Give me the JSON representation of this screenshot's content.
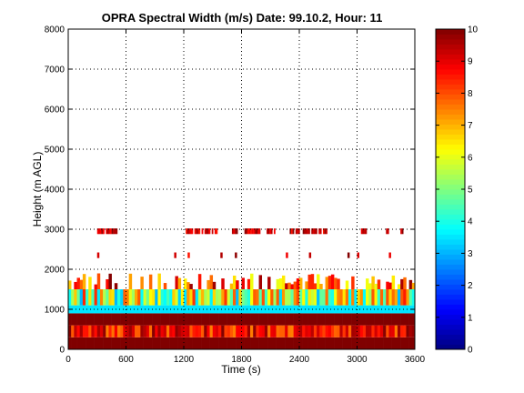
{
  "chart_data": {
    "type": "heatmap",
    "title": "OPRA Spectral Width (m/s)  Date: 99.10.2, Hour: 11",
    "xlabel": "Time (s)",
    "ylabel": "Height (m AGL)",
    "xlim": [
      0,
      3600
    ],
    "ylim": [
      0,
      8000
    ],
    "x_ticks": [
      0,
      600,
      1200,
      1800,
      2400,
      3000,
      3600
    ],
    "y_ticks": [
      0,
      1000,
      2000,
      3000,
      4000,
      5000,
      6000,
      7000,
      8000
    ],
    "colorbar": {
      "range": [
        0,
        10
      ],
      "ticks": [
        0,
        1,
        2,
        3,
        4,
        5,
        6,
        7,
        8,
        9,
        10
      ]
    },
    "colormap": "jet",
    "grid": true,
    "time_step_s": 30,
    "height_bands": [
      {
        "name": "low-level-max",
        "height_m": [
          0,
          300
        ],
        "value": 10
      },
      {
        "name": "near-surface-variable",
        "height_m": [
          300,
          600
        ],
        "value_range": [
          7.5,
          10
        ]
      },
      {
        "name": "max-layer",
        "height_m": [
          600,
          900
        ],
        "value": 10
      },
      {
        "name": "cyan-layer",
        "height_m": [
          900,
          1100
        ],
        "value": 3.5
      },
      {
        "name": "mixed-layer",
        "height_m": [
          1100,
          1500
        ],
        "value_range": [
          3,
          8.5
        ]
      },
      {
        "name": "top-sparse",
        "height_m": [
          1500,
          1900
        ],
        "value_range": [
          6,
          10
        ],
        "coverage": 0.55
      }
    ],
    "gate_2300m": {
      "height_m": [
        2280,
        2420
      ],
      "value_range": [
        8.5,
        10
      ],
      "times_s": [
        300,
        1100,
        1240,
        1580,
        1730,
        2260,
        2500,
        2900,
        3000,
        3330
      ]
    },
    "gate_2950m": {
      "height_m": [
        2880,
        3020
      ],
      "value_range": [
        8.5,
        10
      ],
      "segments_s": [
        [
          300,
          500
        ],
        [
          1220,
          1560
        ],
        [
          1700,
          1760
        ],
        [
          1830,
          1990
        ],
        [
          2060,
          2140
        ],
        [
          2300,
          2680
        ],
        [
          3040,
          3100
        ],
        [
          3300,
          3340
        ],
        [
          3450,
          3480
        ]
      ]
    }
  }
}
